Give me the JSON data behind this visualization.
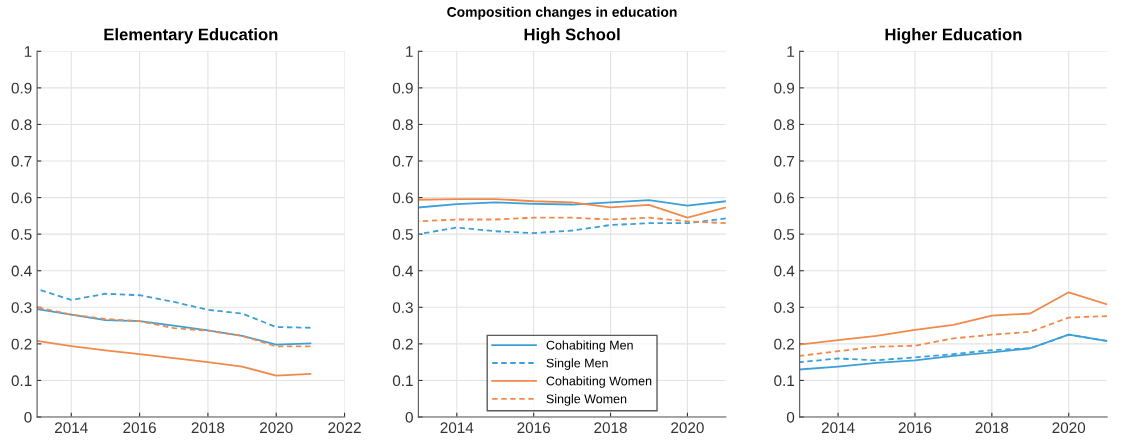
{
  "chart_data": [
    {
      "type": "line",
      "title": "Elementary Education",
      "annotations": [
        "Composition changes in education"
      ],
      "x": [
        2013,
        2014,
        2015,
        2016,
        2017,
        2018,
        2019,
        2020,
        2021
      ],
      "xlim": [
        2013,
        2022
      ],
      "xticks": [
        2014,
        2016,
        2018,
        2020,
        2022
      ],
      "ylim": [
        0,
        1
      ],
      "yticks": [
        0,
        0.1,
        0.2,
        0.3,
        0.4,
        0.5,
        0.6,
        0.7,
        0.8,
        0.9,
        1
      ],
      "grid": true,
      "legend": false,
      "marker": "none",
      "series": [
        {
          "color": "#3d9fd8",
          "line_style": "solid",
          "values": [
            0.295,
            0.28,
            0.265,
            0.262,
            0.25,
            0.237,
            0.222,
            0.198,
            0.201
          ]
        },
        {
          "color": "#3d9fd8",
          "line_style": "dashed",
          "values": [
            0.35,
            0.32,
            0.337,
            0.333,
            0.315,
            0.293,
            0.283,
            0.246,
            0.244
          ]
        },
        {
          "color": "#ef8a4c",
          "line_style": "solid",
          "values": [
            0.208,
            0.194,
            0.182,
            0.172,
            0.161,
            0.15,
            0.138,
            0.113,
            0.118
          ]
        },
        {
          "color": "#ef8a4c",
          "line_style": "dashed",
          "values": [
            0.3,
            0.28,
            0.268,
            0.262,
            0.243,
            0.236,
            0.222,
            0.193,
            0.193
          ]
        }
      ]
    },
    {
      "type": "line",
      "title": "High School",
      "x": [
        2013,
        2014,
        2015,
        2016,
        2017,
        2018,
        2019,
        2020,
        2021
      ],
      "xlim": [
        2013,
        2021
      ],
      "xticks": [
        2014,
        2016,
        2018,
        2020
      ],
      "ylim": [
        0,
        1
      ],
      "yticks": [
        0,
        0.1,
        0.2,
        0.3,
        0.4,
        0.5,
        0.6,
        0.7,
        0.8,
        0.9,
        1
      ],
      "grid": true,
      "legend": "bottom",
      "marker": "none",
      "series": [
        {
          "name": "Cohabiting Men",
          "color": "#3d9fd8",
          "line_style": "solid",
          "values": [
            0.573,
            0.582,
            0.587,
            0.583,
            0.581,
            0.587,
            0.593,
            0.578,
            0.59
          ]
        },
        {
          "name": "Single Men",
          "color": "#3d9fd8",
          "line_style": "dashed",
          "values": [
            0.5,
            0.518,
            0.508,
            0.503,
            0.51,
            0.525,
            0.53,
            0.53,
            0.543
          ]
        },
        {
          "name": "Cohabiting Women",
          "color": "#ef8a4c",
          "line_style": "solid",
          "values": [
            0.594,
            0.596,
            0.596,
            0.59,
            0.587,
            0.573,
            0.58,
            0.545,
            0.573
          ]
        },
        {
          "name": "Single Women",
          "color": "#ef8a4c",
          "line_style": "dashed",
          "values": [
            0.535,
            0.54,
            0.54,
            0.545,
            0.545,
            0.54,
            0.545,
            0.535,
            0.53
          ]
        }
      ]
    },
    {
      "type": "line",
      "title": "Higher Education",
      "x": [
        2013,
        2014,
        2015,
        2016,
        2017,
        2018,
        2019,
        2020,
        2021
      ],
      "xlim": [
        2013,
        2021
      ],
      "xticks": [
        2014,
        2016,
        2018,
        2020
      ],
      "ylim": [
        0,
        1
      ],
      "yticks": [
        0,
        0.1,
        0.2,
        0.3,
        0.4,
        0.5,
        0.6,
        0.7,
        0.8,
        0.9,
        1
      ],
      "grid": true,
      "legend": false,
      "marker": "none",
      "series": [
        {
          "color": "#3d9fd8",
          "line_style": "solid",
          "values": [
            0.13,
            0.138,
            0.148,
            0.155,
            0.167,
            0.177,
            0.188,
            0.225,
            0.208
          ]
        },
        {
          "color": "#3d9fd8",
          "line_style": "dashed",
          "values": [
            0.15,
            0.16,
            0.155,
            0.163,
            0.172,
            0.183,
            0.188,
            0.225,
            0.208
          ]
        },
        {
          "color": "#ef8a4c",
          "line_style": "solid",
          "values": [
            0.198,
            0.21,
            0.222,
            0.238,
            0.252,
            0.277,
            0.283,
            0.341,
            0.308
          ]
        },
        {
          "color": "#ef8a4c",
          "line_style": "dashed",
          "values": [
            0.167,
            0.18,
            0.192,
            0.195,
            0.215,
            0.225,
            0.233,
            0.272,
            0.276
          ]
        }
      ]
    }
  ]
}
